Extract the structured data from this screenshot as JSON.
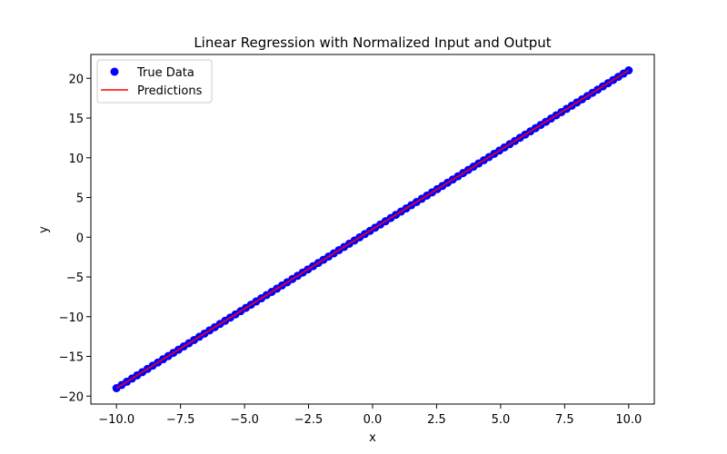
{
  "chart_data": {
    "type": "scatter",
    "title": "Linear Regression with Normalized Input and Output",
    "xlabel": "x",
    "ylabel": "y",
    "xlim": [
      -11.0,
      11.0
    ],
    "ylim": [
      -21.0,
      23.0
    ],
    "xticks": [
      -10.0,
      -7.5,
      -5.0,
      -2.5,
      0.0,
      2.5,
      5.0,
      7.5,
      10.0
    ],
    "xtick_labels": [
      "−10.0",
      "−7.5",
      "−5.0",
      "−2.5",
      "0.0",
      "2.5",
      "5.0",
      "7.5",
      "10.0"
    ],
    "yticks": [
      -20,
      -15,
      -10,
      -5,
      0,
      5,
      10,
      15,
      20
    ],
    "ytick_labels": [
      "−20",
      "−15",
      "−10",
      "−5",
      "0",
      "5",
      "10",
      "15",
      "20"
    ],
    "grid": false,
    "legend_position": "top-left",
    "x_range": [
      -10.0,
      10.0
    ],
    "n_points": 100,
    "true_relation": {
      "slope": 2.0,
      "intercept": 1.0
    },
    "series": [
      {
        "name": "True Data",
        "kind": "scatter",
        "color": "#0000ff"
      },
      {
        "name": "Predictions",
        "kind": "line",
        "color": "#ff0000",
        "x": [
          -10.0,
          10.0
        ],
        "y": [
          -19.0,
          21.0
        ]
      }
    ]
  }
}
